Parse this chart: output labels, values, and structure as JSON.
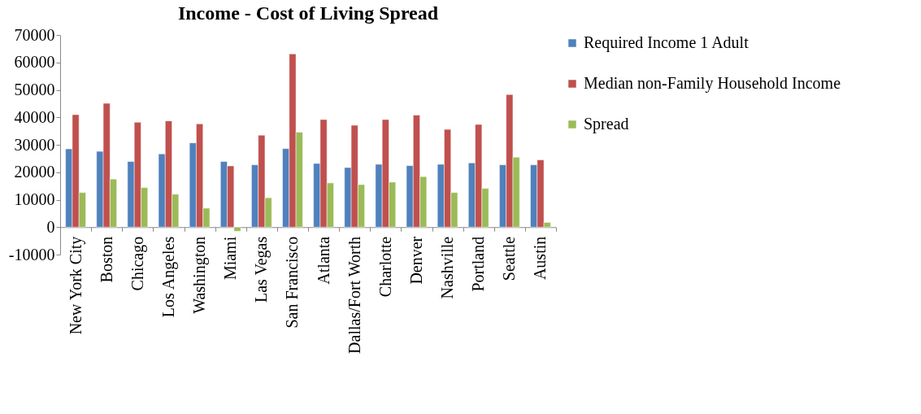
{
  "chart_data": {
    "type": "bar",
    "title": "Income - Cost of Living Spread",
    "categories": [
      "New York City",
      "Boston",
      "Chicago",
      "Los Angeles",
      "Washington",
      "Miami",
      "Las Vegas",
      "San Francisco",
      "Atlanta",
      "Dallas/Fort Worth",
      "Charlotte",
      "Denver",
      "Nashville",
      "Portland",
      "Seattle",
      "Austin"
    ],
    "series": [
      {
        "name": "Required Income 1 Adult",
        "color": "#4f81bd",
        "values": [
          28500,
          27600,
          23900,
          26700,
          30700,
          23900,
          22700,
          28600,
          23200,
          21700,
          22900,
          22400,
          22900,
          23400,
          22700,
          22700
        ]
      },
      {
        "name": "Median non-Family Household Income",
        "color": "#c0504d",
        "values": [
          41000,
          45100,
          38200,
          38700,
          37600,
          22300,
          33500,
          63100,
          39200,
          37100,
          39200,
          40800,
          35600,
          37400,
          48300,
          24500
        ]
      },
      {
        "name": "Spread",
        "color": "#9bbb59",
        "values": [
          12600,
          17500,
          14400,
          12000,
          6900,
          -1500,
          10700,
          34600,
          16100,
          15500,
          16400,
          18400,
          12600,
          14100,
          25500,
          1700
        ]
      }
    ],
    "ylim": [
      -10000,
      70000
    ],
    "yticks": [
      -10000,
      0,
      10000,
      20000,
      30000,
      40000,
      50000,
      60000,
      70000
    ],
    "grid": false,
    "legend": "right"
  }
}
